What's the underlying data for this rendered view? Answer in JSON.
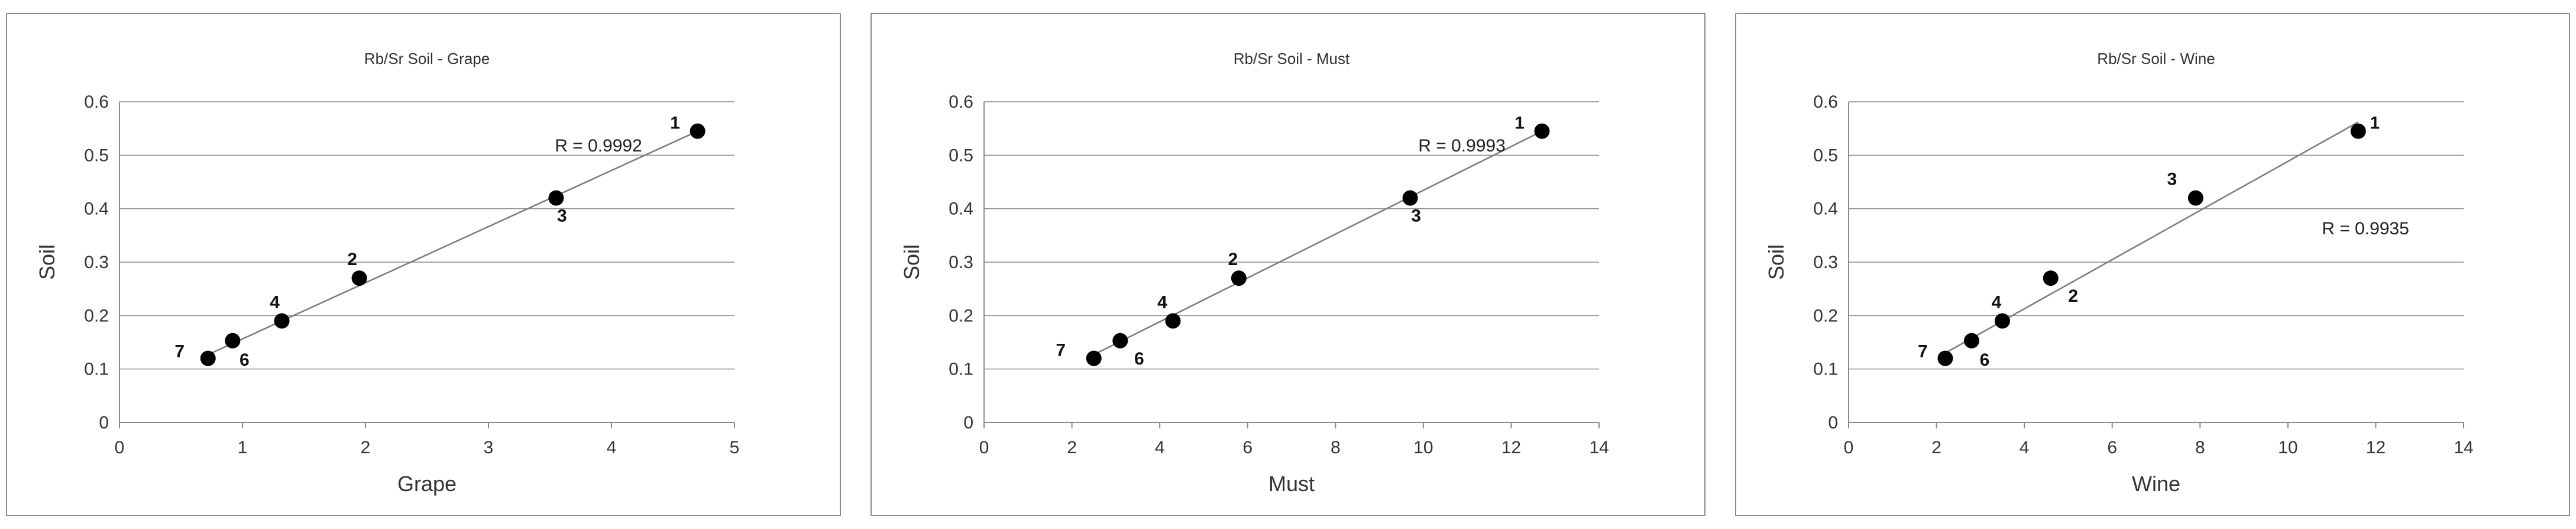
{
  "chart_data": [
    {
      "type": "scatter",
      "title": "Rb/Sr  Soil - Grape",
      "xlabel": "Grape",
      "ylabel": "Soil",
      "xlim": [
        0,
        5
      ],
      "ylim": [
        0,
        0.6
      ],
      "xticks": [
        0,
        1,
        2,
        3,
        4,
        5
      ],
      "yticks": [
        0,
        0.1,
        0.2,
        0.3,
        0.4,
        0.5,
        0.6
      ],
      "grid": "horizontal",
      "annotation": "R = 0.9992",
      "points": [
        {
          "label": "1",
          "x": 4.7,
          "y": 0.545
        },
        {
          "label": "2",
          "x": 1.95,
          "y": 0.27
        },
        {
          "label": "3",
          "x": 3.55,
          "y": 0.42
        },
        {
          "label": "4",
          "x": 1.32,
          "y": 0.19
        },
        {
          "label": "6",
          "x": 0.92,
          "y": 0.153
        },
        {
          "label": "7",
          "x": 0.72,
          "y": 0.12
        }
      ],
      "trendline": [
        [
          0.72,
          0.127
        ],
        [
          4.7,
          0.545
        ]
      ]
    },
    {
      "type": "scatter",
      "title": "Rb/Sr  Soil - Must",
      "xlabel": "Must",
      "ylabel": "Soil",
      "xlim": [
        0,
        14
      ],
      "ylim": [
        0,
        0.6
      ],
      "xticks": [
        0,
        2,
        4,
        6,
        8,
        10,
        12,
        14
      ],
      "yticks": [
        0,
        0.1,
        0.2,
        0.3,
        0.4,
        0.5,
        0.6
      ],
      "grid": "horizontal",
      "annotation": "R = 0.9993",
      "points": [
        {
          "label": "1",
          "x": 12.7,
          "y": 0.545
        },
        {
          "label": "2",
          "x": 5.8,
          "y": 0.27
        },
        {
          "label": "3",
          "x": 9.7,
          "y": 0.42
        },
        {
          "label": "4",
          "x": 4.3,
          "y": 0.19
        },
        {
          "label": "6",
          "x": 3.1,
          "y": 0.153
        },
        {
          "label": "7",
          "x": 2.5,
          "y": 0.12
        }
      ],
      "trendline": [
        [
          2.5,
          0.127
        ],
        [
          12.7,
          0.545
        ]
      ]
    },
    {
      "type": "scatter",
      "title": "Rb/Sr  Soil - Wine",
      "xlabel": "Wine",
      "ylabel": "Soil",
      "xlim": [
        0,
        14
      ],
      "ylim": [
        0,
        0.6
      ],
      "xticks": [
        0,
        2,
        4,
        6,
        8,
        10,
        12,
        14
      ],
      "yticks": [
        0,
        0.1,
        0.2,
        0.3,
        0.4,
        0.5,
        0.6
      ],
      "grid": "horizontal",
      "annotation": "R = 0.9935",
      "points": [
        {
          "label": "1",
          "x": 11.6,
          "y": 0.545
        },
        {
          "label": "2",
          "x": 4.6,
          "y": 0.27
        },
        {
          "label": "3",
          "x": 7.9,
          "y": 0.42
        },
        {
          "label": "4",
          "x": 3.5,
          "y": 0.19
        },
        {
          "label": "6",
          "x": 2.8,
          "y": 0.153
        },
        {
          "label": "7",
          "x": 2.2,
          "y": 0.12
        }
      ],
      "trendline": [
        [
          2.2,
          0.13
        ],
        [
          11.6,
          0.562
        ]
      ]
    }
  ]
}
